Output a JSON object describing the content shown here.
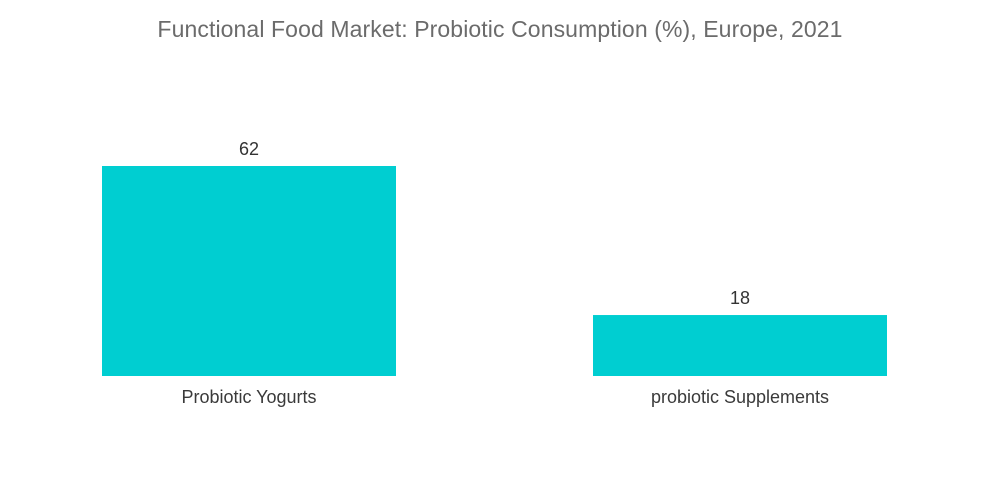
{
  "chart_data": {
    "type": "bar",
    "title": "Functional Food Market: Probiotic Consumption (%), Europe, 2021",
    "categories": [
      "Probiotic Yogurts",
      "probiotic Supplements"
    ],
    "values": [
      62,
      18
    ],
    "xlabel": "",
    "ylabel": "",
    "ylim": [
      0,
      62
    ],
    "grid": false,
    "legend": "none",
    "bar_color": "#00CED1"
  }
}
